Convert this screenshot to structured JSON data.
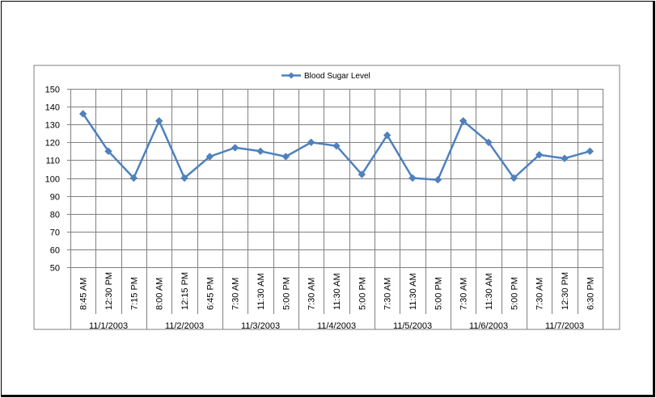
{
  "chart_data": {
    "type": "line",
    "title": "",
    "xlabel": "",
    "ylabel": "",
    "legend": {
      "position": "top",
      "entries": [
        "Blood Sugar Level"
      ]
    },
    "ylim": [
      50,
      150
    ],
    "y_ticks": [
      50,
      60,
      70,
      80,
      90,
      100,
      110,
      120,
      130,
      140,
      150
    ],
    "grid": true,
    "colors": {
      "series": "#4f81bd",
      "grid": "#808080",
      "axis": "#808080"
    },
    "categories": [
      "8:45 AM",
      "12:30 PM",
      "7:15 PM",
      "8:00 AM",
      "12:15 PM",
      "6:45 PM",
      "7:30 AM",
      "11:30 AM",
      "5:00 PM",
      "7:30 AM",
      "11:30 AM",
      "5:00 PM",
      "7:30 AM",
      "11:30 AM",
      "5:00 PM",
      "7:30 AM",
      "11:30 AM",
      "5:00 PM",
      "7:30 AM",
      "12:30 PM",
      "6:30 PM"
    ],
    "groups": [
      {
        "label": "11/1/2003",
        "count": 3
      },
      {
        "label": "11/2/2003",
        "count": 3
      },
      {
        "label": "11/3/2003",
        "count": 3
      },
      {
        "label": "11/4/2003",
        "count": 3
      },
      {
        "label": "11/5/2003",
        "count": 3
      },
      {
        "label": "11/6/2003",
        "count": 3
      },
      {
        "label": "11/7/2003",
        "count": 3
      }
    ],
    "series": [
      {
        "name": "Blood Sugar Level",
        "values": [
          136,
          115,
          100,
          132,
          100,
          112,
          117,
          115,
          112,
          120,
          118,
          102,
          124,
          100,
          99,
          132,
          120,
          100,
          113,
          111,
          115
        ]
      }
    ]
  }
}
